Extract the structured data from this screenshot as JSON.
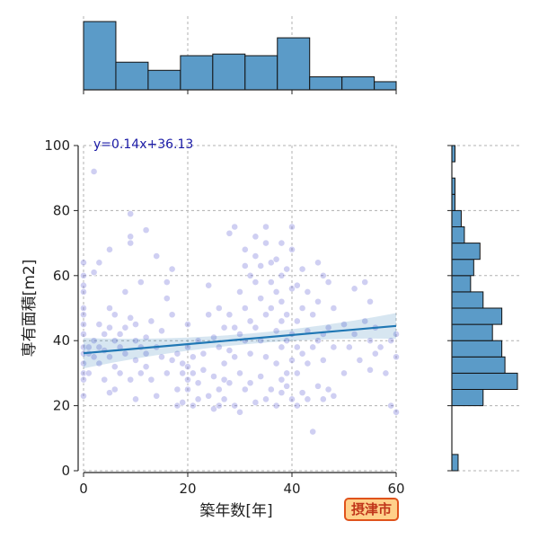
{
  "chart_data": {
    "type": "scatter",
    "xlabel": "築年数[年]",
    "ylabel": "専有面積[m2]",
    "xlim": [
      0,
      60
    ],
    "ylim": [
      0,
      100
    ],
    "x_ticks": [
      "0",
      "20",
      "40",
      "60"
    ],
    "y_ticks": [
      "0",
      "20",
      "40",
      "60",
      "80",
      "100"
    ],
    "grid": true,
    "annotation": "y=0.14x+36.13",
    "regression": {
      "slope": 0.14,
      "intercept": 36.13,
      "ci_band": true
    },
    "colors": {
      "points": "#6a6ad8",
      "regression": "#1f77b4",
      "histogram": "#5b9bc8",
      "badge_bg": "#ffd08a",
      "badge_border": "#e0531c"
    },
    "points": [
      [
        0,
        23
      ],
      [
        0,
        28
      ],
      [
        0,
        30
      ],
      [
        0,
        33
      ],
      [
        0,
        36
      ],
      [
        0,
        38
      ],
      [
        0,
        42
      ],
      [
        0,
        45
      ],
      [
        0,
        48
      ],
      [
        0,
        50
      ],
      [
        0,
        55
      ],
      [
        0,
        57
      ],
      [
        0,
        60
      ],
      [
        0,
        64
      ],
      [
        1,
        36
      ],
      [
        1,
        38
      ],
      [
        1,
        30
      ],
      [
        2,
        92
      ],
      [
        2,
        61
      ],
      [
        2,
        35
      ],
      [
        2,
        40
      ],
      [
        3,
        64
      ],
      [
        3,
        45
      ],
      [
        3,
        38
      ],
      [
        3,
        33
      ],
      [
        4,
        42
      ],
      [
        4,
        37
      ],
      [
        4,
        28
      ],
      [
        5,
        50
      ],
      [
        5,
        44
      ],
      [
        5,
        35
      ],
      [
        5,
        24
      ],
      [
        5,
        68
      ],
      [
        6,
        48
      ],
      [
        6,
        40
      ],
      [
        6,
        32
      ],
      [
        6,
        25
      ],
      [
        7,
        42
      ],
      [
        7,
        38
      ],
      [
        7,
        30
      ],
      [
        8,
        55
      ],
      [
        8,
        36
      ],
      [
        8,
        44
      ],
      [
        9,
        79
      ],
      [
        9,
        70
      ],
      [
        9,
        47
      ],
      [
        9,
        28
      ],
      [
        9,
        72
      ],
      [
        10,
        34
      ],
      [
        10,
        22
      ],
      [
        10,
        45
      ],
      [
        10,
        40
      ],
      [
        11,
        38
      ],
      [
        11,
        30
      ],
      [
        11,
        58
      ],
      [
        12,
        74
      ],
      [
        12,
        41
      ],
      [
        12,
        36
      ],
      [
        12,
        32
      ],
      [
        13,
        46
      ],
      [
        13,
        28
      ],
      [
        14,
        66
      ],
      [
        14,
        38
      ],
      [
        14,
        23
      ],
      [
        15,
        43
      ],
      [
        15,
        35
      ],
      [
        16,
        53
      ],
      [
        16,
        58
      ],
      [
        16,
        30
      ],
      [
        17,
        62
      ],
      [
        17,
        48
      ],
      [
        17,
        34
      ],
      [
        18,
        36
      ],
      [
        18,
        25
      ],
      [
        18,
        20
      ],
      [
        19,
        33
      ],
      [
        19,
        21
      ],
      [
        19,
        30
      ],
      [
        20,
        45
      ],
      [
        20,
        38
      ],
      [
        20,
        32
      ],
      [
        20,
        28
      ],
      [
        20,
        25
      ],
      [
        21,
        35
      ],
      [
        21,
        20
      ],
      [
        21,
        30
      ],
      [
        22,
        40
      ],
      [
        22,
        27
      ],
      [
        22,
        22
      ],
      [
        23,
        36
      ],
      [
        23,
        31
      ],
      [
        24,
        48
      ],
      [
        24,
        23
      ],
      [
        24,
        57
      ],
      [
        25,
        41
      ],
      [
        25,
        29
      ],
      [
        25,
        19
      ],
      [
        26,
        50
      ],
      [
        26,
        38
      ],
      [
        26,
        25
      ],
      [
        26,
        20
      ],
      [
        27,
        44
      ],
      [
        27,
        33
      ],
      [
        27,
        28
      ],
      [
        27,
        22
      ],
      [
        28,
        73
      ],
      [
        28,
        48
      ],
      [
        28,
        37
      ],
      [
        28,
        27
      ],
      [
        29,
        75
      ],
      [
        29,
        44
      ],
      [
        29,
        35
      ],
      [
        29,
        20
      ],
      [
        30,
        55
      ],
      [
        30,
        42
      ],
      [
        30,
        30
      ],
      [
        30,
        18
      ],
      [
        31,
        68
      ],
      [
        31,
        63
      ],
      [
        31,
        50
      ],
      [
        31,
        40
      ],
      [
        31,
        25
      ],
      [
        32,
        60
      ],
      [
        32,
        46
      ],
      [
        32,
        36
      ],
      [
        32,
        27
      ],
      [
        33,
        72
      ],
      [
        33,
        66
      ],
      [
        33,
        58
      ],
      [
        33,
        44
      ],
      [
        33,
        21
      ],
      [
        34,
        63
      ],
      [
        34,
        53
      ],
      [
        34,
        40
      ],
      [
        34,
        29
      ],
      [
        35,
        75
      ],
      [
        35,
        70
      ],
      [
        35,
        48
      ],
      [
        35,
        35
      ],
      [
        35,
        22
      ],
      [
        36,
        64
      ],
      [
        36,
        58
      ],
      [
        36,
        50
      ],
      [
        36,
        25
      ],
      [
        37,
        65
      ],
      [
        37,
        55
      ],
      [
        37,
        43
      ],
      [
        37,
        33
      ],
      [
        37,
        20
      ],
      [
        38,
        70
      ],
      [
        38,
        60
      ],
      [
        38,
        52
      ],
      [
        38,
        46
      ],
      [
        38,
        38
      ],
      [
        38,
        28
      ],
      [
        38,
        24
      ],
      [
        39,
        62
      ],
      [
        39,
        48
      ],
      [
        39,
        40
      ],
      [
        39,
        30
      ],
      [
        39,
        26
      ],
      [
        40,
        75
      ],
      [
        40,
        68
      ],
      [
        40,
        56
      ],
      [
        40,
        42
      ],
      [
        40,
        34
      ],
      [
        40,
        22
      ],
      [
        41,
        57
      ],
      [
        41,
        46
      ],
      [
        41,
        38
      ],
      [
        41,
        30
      ],
      [
        41,
        20
      ],
      [
        42,
        62
      ],
      [
        42,
        50
      ],
      [
        42,
        36
      ],
      [
        42,
        24
      ],
      [
        43,
        55
      ],
      [
        43,
        43
      ],
      [
        43,
        33
      ],
      [
        43,
        22
      ],
      [
        44,
        48
      ],
      [
        44,
        38
      ],
      [
        44,
        12
      ],
      [
        45,
        64
      ],
      [
        45,
        52
      ],
      [
        45,
        40
      ],
      [
        45,
        26
      ],
      [
        46,
        60
      ],
      [
        46,
        42
      ],
      [
        46,
        34
      ],
      [
        46,
        22
      ],
      [
        47,
        58
      ],
      [
        47,
        44
      ],
      [
        47,
        25
      ],
      [
        48,
        50
      ],
      [
        48,
        38
      ],
      [
        48,
        23
      ],
      [
        50,
        45
      ],
      [
        50,
        30
      ],
      [
        51,
        38
      ],
      [
        52,
        56
      ],
      [
        52,
        42
      ],
      [
        53,
        34
      ],
      [
        54,
        58
      ],
      [
        54,
        46
      ],
      [
        55,
        52
      ],
      [
        55,
        40
      ],
      [
        55,
        31
      ],
      [
        56,
        44
      ],
      [
        56,
        36
      ],
      [
        57,
        38
      ],
      [
        58,
        30
      ],
      [
        59,
        40
      ],
      [
        59,
        20
      ],
      [
        60,
        42
      ],
      [
        60,
        35
      ],
      [
        60,
        18
      ]
    ],
    "x_histogram": {
      "bin_width": 6.2,
      "counts": [
        42,
        17,
        12,
        21,
        22,
        21,
        32,
        8,
        8,
        5
      ]
    },
    "y_histogram": {
      "bin_width": 5,
      "counts": [
        2,
        0,
        0,
        0,
        10,
        21,
        17,
        16,
        13,
        16,
        10,
        6,
        7,
        9,
        4,
        3,
        1,
        1,
        0,
        1
      ]
    }
  },
  "badge": {
    "text": "摂津市"
  }
}
